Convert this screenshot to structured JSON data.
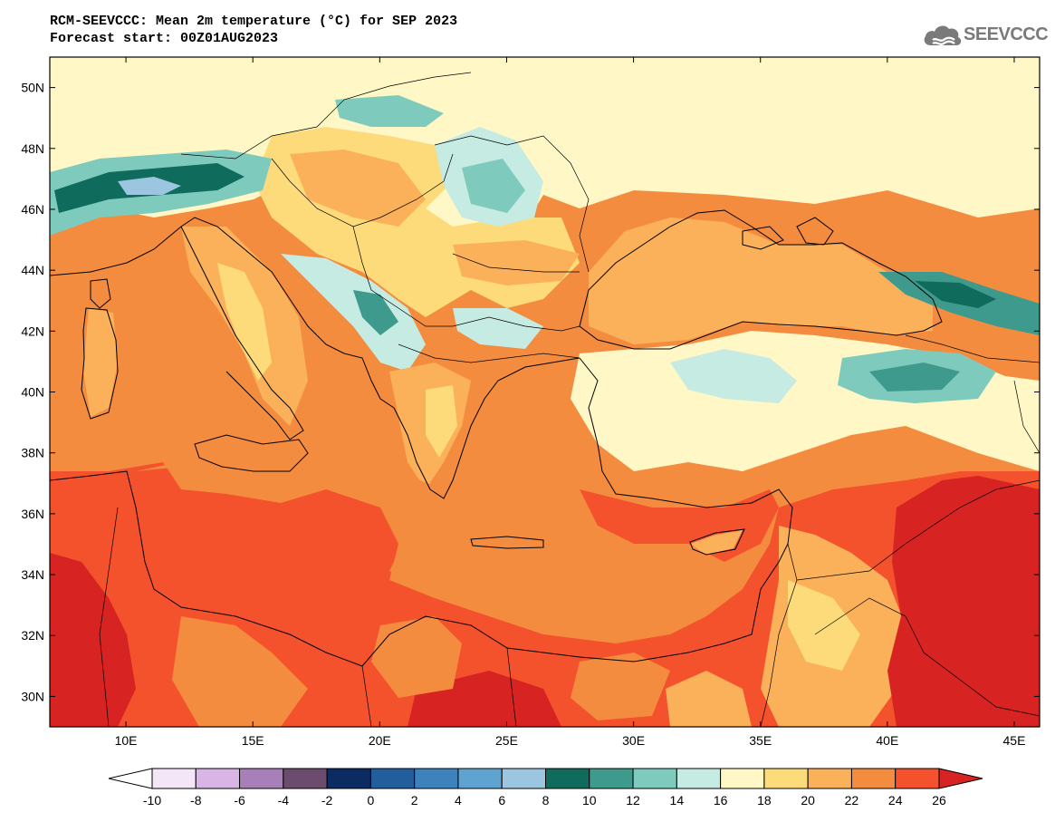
{
  "header": {
    "title_line1": "RCM-SEEVCCC: Mean 2m temperature (°C) for SEP 2023",
    "title_line2": "Forecast start: 00Z01AUG2023",
    "logo_text": "SEEVCCC"
  },
  "map": {
    "lon_range": [
      7,
      46
    ],
    "lat_range": [
      29,
      51
    ],
    "lon_ticks": [
      10,
      15,
      20,
      25,
      30,
      35,
      40,
      45
    ],
    "lat_ticks": [
      30,
      32,
      34,
      36,
      38,
      40,
      42,
      44,
      46,
      48,
      50
    ],
    "lon_tick_labels": [
      "10E",
      "15E",
      "20E",
      "25E",
      "30E",
      "35E",
      "40E",
      "45E"
    ],
    "lat_tick_labels": [
      "30N",
      "32N",
      "34N",
      "36N",
      "38N",
      "40N",
      "42N",
      "44N",
      "46N",
      "48N",
      "50N"
    ],
    "coastline_color": "#000000"
  },
  "colorbar": {
    "tick_labels": [
      "-10",
      "-8",
      "-6",
      "-4",
      "-2",
      "0",
      "2",
      "4",
      "6",
      "8",
      "10",
      "12",
      "14",
      "16",
      "18",
      "20",
      "22",
      "24",
      "26"
    ],
    "colors": [
      "#ffffff",
      "#f2e6f7",
      "#d9b5e6",
      "#a77fb9",
      "#6b4c6e",
      "#0d2b63",
      "#225e9c",
      "#3d82bd",
      "#5fa3d1",
      "#9cc6e0",
      "#0f6b5b",
      "#3e9a8c",
      "#7ecbbd",
      "#c6ebe2",
      "#fff8c6",
      "#fedb7a",
      "#fbb15a",
      "#f48c3f",
      "#f4512d",
      "#d72321"
    ]
  }
}
